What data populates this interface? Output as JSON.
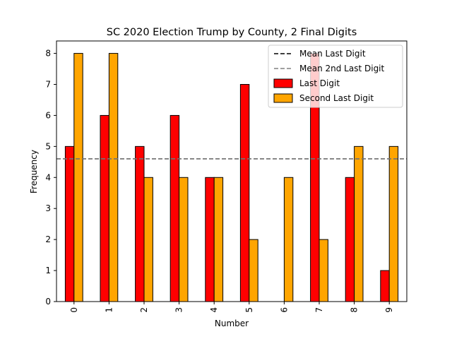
{
  "chart_data": {
    "type": "bar",
    "title": "SC 2020 Election Trump by County, 2 Final Digits",
    "xlabel": "Number",
    "ylabel": "Frequency",
    "categories": [
      "0",
      "1",
      "2",
      "3",
      "4",
      "5",
      "6",
      "7",
      "8",
      "9"
    ],
    "series": [
      {
        "name": "Last Digit",
        "color": "#ff0000",
        "values": [
          5,
          6,
          5,
          6,
          4,
          7,
          0,
          8,
          4,
          1
        ]
      },
      {
        "name": "Second Last Digit",
        "color": "#ffa500",
        "values": [
          8,
          8,
          4,
          4,
          4,
          2,
          4,
          2,
          5,
          5
        ]
      }
    ],
    "ylim": [
      0,
      8.4
    ],
    "yticks": [
      0,
      1,
      2,
      3,
      4,
      5,
      6,
      7,
      8
    ],
    "reference_lines": [
      {
        "name": "Mean Last Digit",
        "value": 4.6,
        "color": "#000000",
        "style": "dashed"
      },
      {
        "name": "Mean 2nd Last Digit",
        "value": 4.6,
        "color": "#808080",
        "style": "dashed"
      }
    ],
    "legend": {
      "position": "top-right",
      "entries": [
        "Mean Last Digit",
        "Mean 2nd Last Digit",
        "Last Digit",
        "Second Last Digit"
      ]
    },
    "grid": false
  }
}
